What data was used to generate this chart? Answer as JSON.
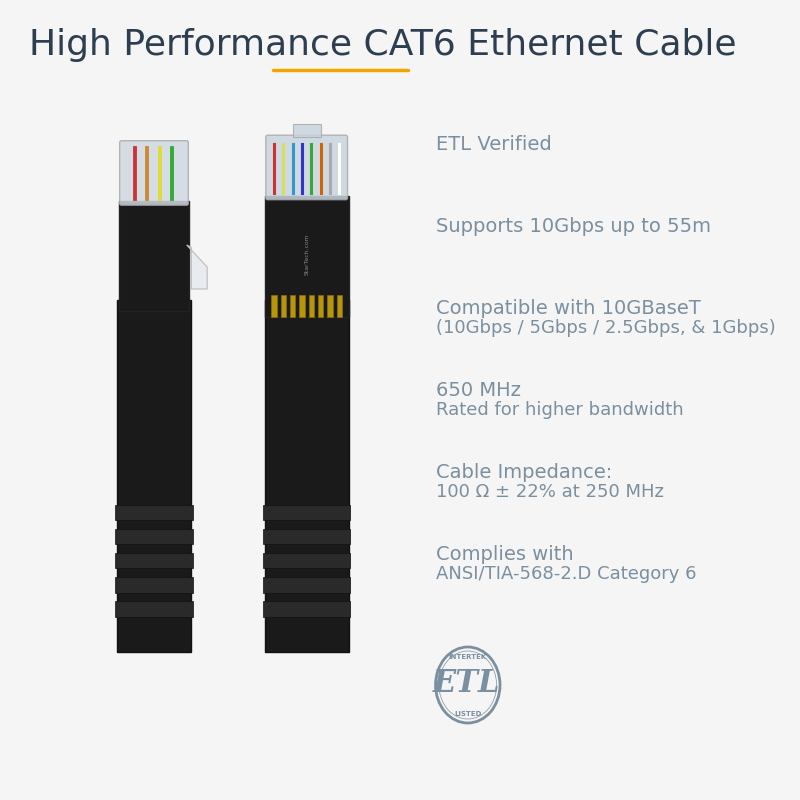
{
  "title": "High Performance CAT6 Ethernet Cable",
  "title_color": "#2d3e50",
  "title_fontsize": 26,
  "underline_color": "#f0a500",
  "bg_color": "#f5f5f5",
  "specs": [
    {
      "line1": "ETL Verified",
      "line2": ""
    },
    {
      "line1": "Supports 10Gbps up to 55m",
      "line2": ""
    },
    {
      "line1": "Compatible with 10GBaseT",
      "line2": "(10Gbps / 5Gbps / 2.5Gbps, & 1Gbps)"
    },
    {
      "line1": "650 MHz",
      "line2": "Rated for higher bandwidth"
    },
    {
      "line1": "Cable Impedance:",
      "line2": "100 Ω ± 22% at 250 MHz"
    },
    {
      "line1": "Complies with",
      "line2": "ANSI/TIA-568-2.D Category 6"
    }
  ],
  "spec_color": "#7a8fa0",
  "spec_fontsize": 14,
  "etl_color": "#7a8fa0",
  "etl_ring_color": "#7a8fa0"
}
